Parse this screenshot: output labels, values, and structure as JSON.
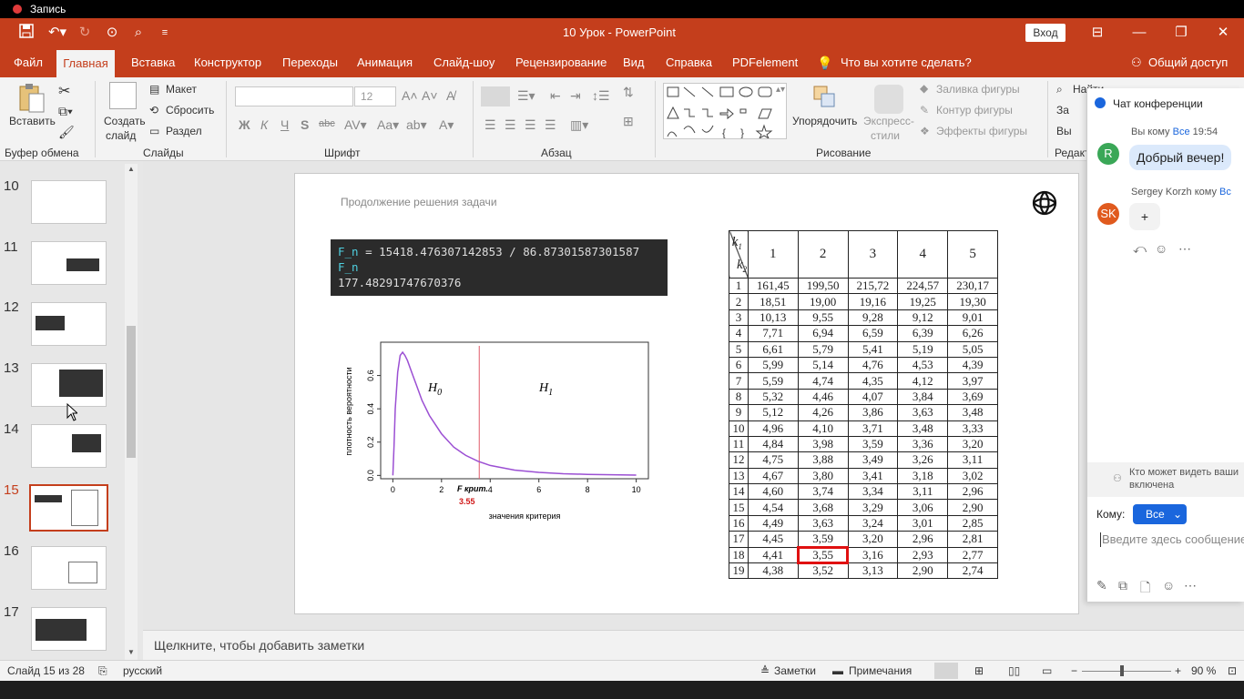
{
  "recording": {
    "label": "Запись"
  },
  "window": {
    "title": "10 Урок  -  PowerPoint",
    "signin": "Вход"
  },
  "menu": {
    "tabs": [
      "Файл",
      "Главная",
      "Вставка",
      "Конструктор",
      "Переходы",
      "Анимация",
      "Слайд-шоу",
      "Рецензирование",
      "Вид",
      "Справка",
      "PDFelement"
    ],
    "tell_me": "Что вы хотите сделать?",
    "share": "Общий доступ"
  },
  "ribbon": {
    "clipboard": {
      "paste": "Вставить",
      "group": "Буфер обмена"
    },
    "slides": {
      "new1": "Создать",
      "new2": "слайд",
      "layout": "Макет",
      "reset": "Сбросить",
      "section": "Раздел",
      "group": "Слайды"
    },
    "font": {
      "size": "12",
      "group": "Шрифт",
      "b": "Ж",
      "i": "К",
      "u": "Ч",
      "s": "S",
      "abc": "abc"
    },
    "paragraph": {
      "group": "Абзац"
    },
    "drawing": {
      "arrange": "Упорядочить",
      "quick1": "Экспресс-",
      "quick2": "стили",
      "fill": "Заливка фигуры",
      "outline": "Контур фигуры",
      "effects": "Эффекты фигуры",
      "group": "Рисование"
    },
    "editing": {
      "find": "Найти",
      "replace": "За",
      "select": "Вы",
      "group": "Редакт"
    }
  },
  "thumbnails": {
    "numbers": [
      "10",
      "11",
      "12",
      "13",
      "14",
      "15",
      "16",
      "17"
    ],
    "selected": "15"
  },
  "slide": {
    "subtitle": "Продолжение решения задачи",
    "code": {
      "l1a": "F_n",
      "l1b": " = 15418.476307142853 / 86.87301587301587",
      "l2": "F_n",
      "l3": "177.48291747670376"
    }
  },
  "chart_data": {
    "type": "line",
    "title": "",
    "xlabel": "значения критерия",
    "ylabel": "плотность вероятности",
    "xlim": [
      -0.5,
      10.5
    ],
    "ylim": [
      -0.02,
      0.8
    ],
    "x_ticks": [
      "0",
      "2",
      "4",
      "6",
      "8",
      "10"
    ],
    "y_ticks": [
      "0.0",
      "0.2",
      "0.4",
      "0.6"
    ],
    "annotations": {
      "h0": "H",
      "h0_sub": "0",
      "h1": "H",
      "h1_sub": "1",
      "fcrit": "F  крит.",
      "fcrit_value": "3.55"
    },
    "critical_x": 3.55,
    "series": [
      {
        "x": [
          0,
          0.05,
          0.1,
          0.2,
          0.3,
          0.4,
          0.5,
          0.6,
          0.8,
          1,
          1.2,
          1.5,
          2,
          2.5,
          3,
          3.5,
          4,
          5,
          6,
          7,
          8,
          10
        ],
        "y": [
          0,
          0.18,
          0.4,
          0.62,
          0.72,
          0.74,
          0.72,
          0.69,
          0.61,
          0.53,
          0.45,
          0.36,
          0.25,
          0.17,
          0.12,
          0.085,
          0.06,
          0.032,
          0.018,
          0.01,
          0.006,
          0.002
        ]
      }
    ],
    "colors": {
      "curve": "#9b4fd3",
      "critical": "#e05a6a"
    }
  },
  "ftable": {
    "corner_top": "k",
    "corner_top_sub": "1",
    "corner_bottom": "k",
    "corner_bottom_sub": "2",
    "cols": [
      "1",
      "2",
      "3",
      "4",
      "5"
    ],
    "rows": [
      [
        "1",
        "161,45",
        "199,50",
        "215,72",
        "224,57",
        "230,17"
      ],
      [
        "2",
        "18,51",
        "19,00",
        "19,16",
        "19,25",
        "19,30"
      ],
      [
        "3",
        "10,13",
        "9,55",
        "9,28",
        "9,12",
        "9,01"
      ],
      [
        "4",
        "7,71",
        "6,94",
        "6,59",
        "6,39",
        "6,26"
      ],
      [
        "5",
        "6,61",
        "5,79",
        "5,41",
        "5,19",
        "5,05"
      ],
      [
        "6",
        "5,99",
        "5,14",
        "4,76",
        "4,53",
        "4,39"
      ],
      [
        "7",
        "5,59",
        "4,74",
        "4,35",
        "4,12",
        "3,97"
      ],
      [
        "8",
        "5,32",
        "4,46",
        "4,07",
        "3,84",
        "3,69"
      ],
      [
        "9",
        "5,12",
        "4,26",
        "3,86",
        "3,63",
        "3,48"
      ],
      [
        "10",
        "4,96",
        "4,10",
        "3,71",
        "3,48",
        "3,33"
      ],
      [
        "11",
        "4,84",
        "3,98",
        "3,59",
        "3,36",
        "3,20"
      ],
      [
        "12",
        "4,75",
        "3,88",
        "3,49",
        "3,26",
        "3,11"
      ],
      [
        "13",
        "4,67",
        "3,80",
        "3,41",
        "3,18",
        "3,02"
      ],
      [
        "14",
        "4,60",
        "3,74",
        "3,34",
        "3,11",
        "2,96"
      ],
      [
        "15",
        "4,54",
        "3,68",
        "3,29",
        "3,06",
        "2,90"
      ],
      [
        "16",
        "4,49",
        "3,63",
        "3,24",
        "3,01",
        "2,85"
      ],
      [
        "17",
        "4,45",
        "3,59",
        "3,20",
        "2,96",
        "2,81"
      ],
      [
        "18",
        "4,41",
        "3,55",
        "3,16",
        "2,93",
        "2,77"
      ],
      [
        "19",
        "4,38",
        "3,52",
        "3,13",
        "2,90",
        "2,74"
      ]
    ],
    "highlight_row": "18",
    "highlight_col": "2"
  },
  "notes": {
    "placeholder": "Щелкните, чтобы добавить заметки"
  },
  "status": {
    "slide": "Слайд 15 из 28",
    "lang": "русский",
    "notes": "Заметки",
    "comments": "Примечания",
    "zoom": "90 %"
  },
  "chat": {
    "title": "Чат конференции",
    "m1_from": "Вы кому ",
    "m1_to": "Все",
    "m1_time": " 19:54",
    "m1_text": "Добрый вечер!",
    "m1_avatar": "R",
    "m2_from": "Sergey Korzh кому ",
    "m2_to": "Вс",
    "m2_text": "+",
    "m2_avatar": "SK",
    "who_can_see": "Кто может видеть ваши",
    "who_can_see2": "включена",
    "to_label": "Кому:",
    "to_value": "Все",
    "placeholder": "Введите здесь сообщение"
  }
}
